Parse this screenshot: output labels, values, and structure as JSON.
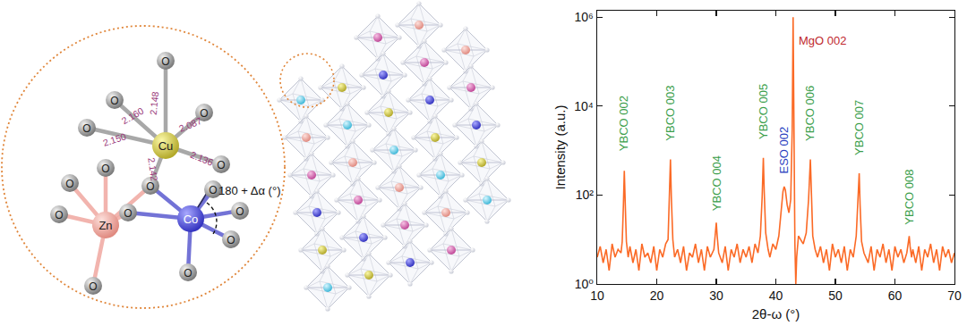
{
  "chart_data": {
    "type": "line",
    "x_label": "2θ-ω (°)",
    "y_label": "Intensity (a.u.)",
    "log": "y",
    "grid": false,
    "x": [
      10,
      10.5,
      11,
      11.5,
      12,
      12.5,
      13,
      13.5,
      14,
      14.2,
      14.4,
      14.55,
      14.7,
      14.9,
      15.2,
      15.5,
      16,
      16.5,
      17,
      17.5,
      18,
      18.5,
      19,
      19.5,
      20,
      20.5,
      21,
      21.5,
      21.9,
      22.1,
      22.3,
      22.45,
      22.7,
      23,
      23.5,
      24,
      24.5,
      25,
      25.5,
      26,
      26.5,
      27,
      27.5,
      28,
      28.5,
      29,
      29.6,
      29.85,
      30,
      30.15,
      30.4,
      31,
      31.5,
      32,
      32.5,
      33,
      33.5,
      34,
      34.5,
      35,
      35.5,
      36,
      36.5,
      37,
      37.4,
      37.7,
      37.9,
      38.05,
      38.3,
      38.7,
      39,
      39.5,
      40,
      40.5,
      40.9,
      41.2,
      41.4,
      41.6,
      41.9,
      42.2,
      42.5,
      42.75,
      42.9,
      43.05,
      43.2,
      43.35,
      43.5,
      43.8,
      44.2,
      44.6,
      45.1,
      45.5,
      45.8,
      45.95,
      46.2,
      46.6,
      47,
      47.5,
      48,
      48.5,
      49,
      49.5,
      50,
      50.5,
      51,
      51.5,
      52,
      52.5,
      53,
      53.5,
      53.8,
      54,
      54.15,
      54.4,
      54.8,
      55.5,
      56,
      56.5,
      57,
      57.5,
      58,
      58.5,
      59,
      59.5,
      60,
      60.5,
      61,
      61.5,
      62,
      62.25,
      62.4,
      62.55,
      62.8,
      63,
      63.5,
      64,
      64.5,
      65,
      65.5,
      66,
      66.5,
      67,
      67.5,
      68,
      68.5,
      69,
      69.5,
      70
    ],
    "series": [
      {
        "color": "#fb6a26",
        "values": [
          4,
          7,
          3,
          6,
          2,
          8,
          4,
          6,
          5,
          9,
          60,
          350,
          70,
          9,
          4,
          7,
          3,
          6,
          2,
          8,
          4,
          5,
          3,
          7,
          2,
          6,
          4,
          8,
          10,
          80,
          630,
          90,
          10,
          4,
          6,
          3,
          7,
          2,
          5,
          4,
          8,
          3,
          6,
          2,
          7,
          4,
          6,
          14,
          24,
          12,
          5,
          3,
          7,
          2,
          6,
          4,
          8,
          3,
          6,
          4,
          7,
          3,
          8,
          5,
          12,
          90,
          690,
          120,
          14,
          6,
          4,
          8,
          6,
          12,
          40,
          120,
          155,
          130,
          60,
          40,
          80,
          3000,
          1000000,
          2000,
          8,
          1,
          4,
          12,
          10,
          8,
          14,
          80,
          630,
          120,
          12,
          6,
          4,
          7,
          3,
          6,
          2,
          8,
          4,
          6,
          3,
          7,
          2,
          6,
          4,
          12,
          80,
          310,
          60,
          9,
          5,
          3,
          7,
          2,
          6,
          4,
          8,
          3,
          6,
          2,
          7,
          4,
          6,
          3,
          5,
          9,
          12,
          7,
          4,
          6,
          3,
          7,
          2,
          6,
          4,
          8,
          3,
          6,
          2,
          7,
          4,
          6,
          3,
          5
        ]
      }
    ],
    "xlim": [
      10,
      70
    ],
    "xticks": [
      10,
      20,
      30,
      40,
      50,
      60,
      70
    ],
    "ylim": [
      1,
      1400000
    ],
    "yticks": [
      {
        "value": 1,
        "label": "10⁰"
      },
      {
        "value": 100,
        "label": "10²"
      },
      {
        "value": 10000,
        "label": "10⁴"
      },
      {
        "value": 1000000,
        "label": "10⁶"
      }
    ],
    "annotations": [
      {
        "text": "YBCO 002",
        "x": 14.55,
        "y": 900,
        "color": "#3a9e4a"
      },
      {
        "text": "YBCO 003",
        "x": 22.3,
        "y": 1500,
        "color": "#3a9e4a"
      },
      {
        "text": "YBCO 004",
        "x": 30,
        "y": 40,
        "color": "#3a9e4a"
      },
      {
        "text": "YBCO 005",
        "x": 37.9,
        "y": 1600,
        "color": "#3a9e4a"
      },
      {
        "text": "ESO 002",
        "x": 41.4,
        "y": 280,
        "color": "#2a3fbf"
      },
      {
        "text": "MgO 002",
        "x": 42.9,
        "y": 300000,
        "color": "#c0282d"
      },
      {
        "text": "YBCO 006",
        "x": 45.8,
        "y": 1500,
        "color": "#3a9e4a"
      },
      {
        "text": "YBCO 007",
        "x": 54,
        "y": 700,
        "color": "#3a9e4a"
      },
      {
        "text": "YBCO 008",
        "x": 62.4,
        "y": 20,
        "color": "#3a9e4a"
      }
    ]
  },
  "diagram": {
    "atoms": [
      "Cu",
      "Zn",
      "Co"
    ],
    "oxygen_label": "O",
    "bond_lengths": [
      "2.148",
      "2.160",
      "2.087",
      "2.150",
      "2.136",
      "2.142"
    ],
    "angle_label": "180 + Δα (°)"
  }
}
